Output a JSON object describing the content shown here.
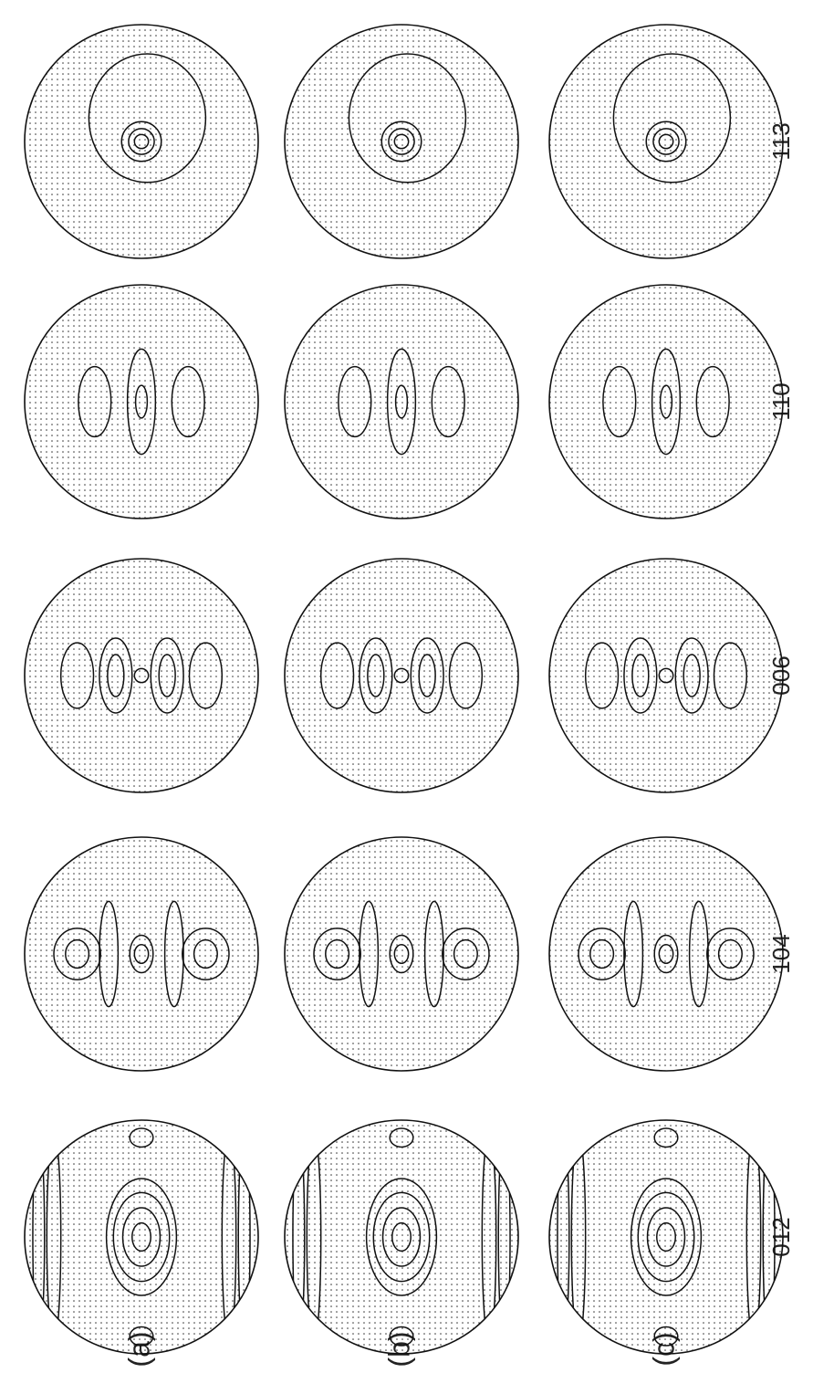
{
  "figure": {
    "reflection_labels": [
      "012",
      "104",
      "006",
      "110",
      "113"
    ],
    "row_labels": [
      "(a)",
      "(b)",
      "(c)"
    ],
    "line_color": "#111111",
    "dot_color": "#333333"
  }
}
